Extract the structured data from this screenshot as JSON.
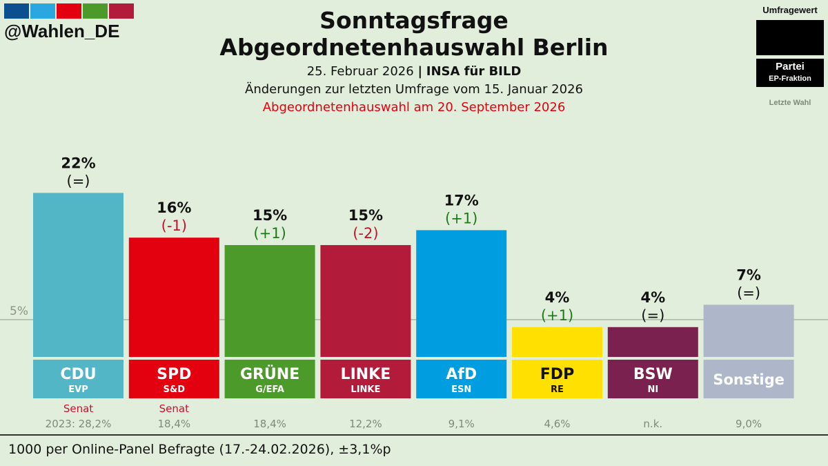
{
  "handle": "@Wahlen_DE",
  "brand_colors": [
    "#0b4f8f",
    "#2aa7df",
    "#e3000f",
    "#4c9a2a",
    "#b31b3b"
  ],
  "header": {
    "title_line1": "Sonntagsfrage",
    "title_line2": "Abgeordnetenhauswahl Berlin",
    "date_text": "25. Februar 2026",
    "separator": "|",
    "source": "INSA für BILD",
    "changes_note": "Änderungen zur letzten Umfrage vom 15. Januar 2026",
    "election_note": "Abgeordnetenhauswahl am 20. September 2026"
  },
  "legend": {
    "title": "Umfragewert",
    "party": "Partei",
    "faction": "EP-Fraktion",
    "last_election": "Letzte Wahl"
  },
  "chart_data": {
    "type": "bar",
    "threshold_label": "5%",
    "threshold": 5,
    "parties": [
      {
        "name": "CDU",
        "faction": "EVP",
        "value": 22,
        "label": "22%",
        "change": "(=)",
        "change_dir": "none",
        "color": "#52b6c6",
        "text_color": "#ffffff",
        "note": "Senat",
        "last": "2023: 28,2%"
      },
      {
        "name": "SPD",
        "faction": "S&D",
        "value": 16,
        "label": "16%",
        "change": "(-1)",
        "change_dir": "down",
        "color": "#e3000f",
        "text_color": "#ffffff",
        "note": "Senat",
        "last": "18,4%"
      },
      {
        "name": "GRÜNE",
        "faction": "G/EFA",
        "value": 15,
        "label": "15%",
        "change": "(+1)",
        "change_dir": "up",
        "color": "#4c9a2a",
        "text_color": "#ffffff",
        "note": "",
        "last": "18,4%"
      },
      {
        "name": "LINKE",
        "faction": "LINKE",
        "value": 15,
        "label": "15%",
        "change": "(-2)",
        "change_dir": "down",
        "color": "#b31b3b",
        "text_color": "#ffffff",
        "note": "",
        "last": "12,2%"
      },
      {
        "name": "AfD",
        "faction": "ESN",
        "value": 17,
        "label": "17%",
        "change": "(+1)",
        "change_dir": "up",
        "color": "#009ee0",
        "text_color": "#ffffff",
        "note": "",
        "last": "9,1%"
      },
      {
        "name": "FDP",
        "faction": "RE",
        "value": 4,
        "label": "4%",
        "change": "(+1)",
        "change_dir": "up",
        "color": "#ffe000",
        "text_color": "#111111",
        "note": "",
        "last": "4,6%"
      },
      {
        "name": "BSW",
        "faction": "NI",
        "value": 4,
        "label": "4%",
        "change": "(=)",
        "change_dir": "none",
        "color": "#7b2150",
        "text_color": "#ffffff",
        "note": "",
        "last": "n.k."
      },
      {
        "name": "Sonstige",
        "faction": "",
        "value": 7,
        "label": "7%",
        "change": "(=)",
        "change_dir": "none",
        "color": "#adb7c9",
        "text_color": "#ffffff",
        "note": "",
        "last": "9,0%"
      }
    ]
  },
  "footer": "1000 per Online-Panel Befragte (17.-24.02.2026), ±3,1%p"
}
